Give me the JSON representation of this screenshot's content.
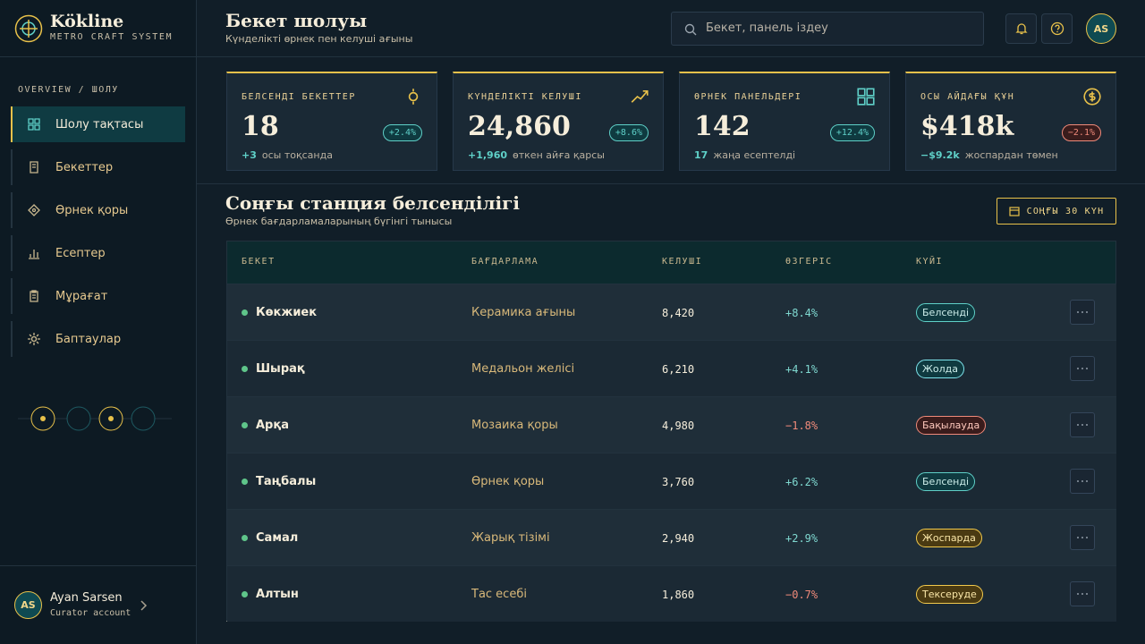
{
  "sidebar": {
    "brand": {
      "name": "Kökline",
      "tagline": "METRO CRAFT SYSTEM"
    },
    "breadcrumb": "OVERVIEW / ШОЛУ",
    "nav": [
      {
        "label": "Шолу тақтасы",
        "active": true
      },
      {
        "label": "Бекеттер",
        "active": false
      },
      {
        "label": "Өрнек қоры",
        "active": false
      },
      {
        "label": "Есептер",
        "active": false
      },
      {
        "label": "Мұрағат",
        "active": false
      },
      {
        "label": "Баптаулар",
        "active": false
      }
    ],
    "user": {
      "initials": "AS",
      "name": "Ayan Sarsen",
      "role": "Curator account"
    }
  },
  "header": {
    "title": "Бекет шолуы",
    "subtitle": "Күнделікті өрнек пен келуші ағыны",
    "search_placeholder": "Бекет, панель іздеу",
    "avatar": "AS"
  },
  "kpis": [
    {
      "label": "БЕЛСЕНДІ БЕКЕТТЕР",
      "value": "18",
      "badge": "+2.4%",
      "badge_color": "#5fd0c8",
      "delta": "+3",
      "note": "осы тоқсанда"
    },
    {
      "label": "КҮНДЕЛІКТІ КЕЛУШІ",
      "value": "24,860",
      "badge": "+8.6%",
      "badge_color": "#5fd0c8",
      "delta": "+1,960",
      "note": "өткен айға қарсы"
    },
    {
      "label": "ӨРНЕК ПАНЕЛЬДЕРІ",
      "value": "142",
      "badge": "+12.4%",
      "badge_color": "#5fd0c8",
      "delta": "17",
      "note": "жаңа есептелді"
    },
    {
      "label": "ОСЫ АЙДАҒЫ ҚҰН",
      "value": "$418k",
      "badge": "−2.1%",
      "badge_color": "#f08a7a",
      "delta": "−$9.2k",
      "note": "жоспардан төмен"
    }
  ],
  "activity": {
    "title": "Соңғы станция белсенділігі",
    "subtitle": "Өрнек бағдарламаларының бүгінгі тынысы",
    "range_button": "СОҢҒЫ 30 КҮН",
    "columns": [
      "БЕКЕТ",
      "БАҒДАРЛАМА",
      "КЕЛУШІ",
      "ӨЗГЕРІС",
      "КҮЙІ"
    ],
    "rows": [
      {
        "station": "Көкжиек",
        "program": "Керамика ағыны",
        "visitors": "8,420",
        "change": "+8.4%",
        "change_color": "#7fd8d0",
        "status": "Белсенді",
        "status_color": "#5fd0c8"
      },
      {
        "station": "Шырақ",
        "program": "Медальон желісі",
        "visitors": "6,210",
        "change": "+4.1%",
        "change_color": "#7fd8d0",
        "status": "Жолда",
        "status_color": "#7fe6ee"
      },
      {
        "station": "Арқа",
        "program": "Мозаика қоры",
        "visitors": "4,980",
        "change": "−1.8%",
        "change_color": "#f08a7a",
        "status": "Бақылауда",
        "status_color": "#f08a7a"
      },
      {
        "station": "Таңбалы",
        "program": "Өрнек қоры",
        "visitors": "3,760",
        "change": "+6.2%",
        "change_color": "#7fd8d0",
        "status": "Белсенді",
        "status_color": "#5fd0c8"
      },
      {
        "station": "Самал",
        "program": "Жарық тізімі",
        "visitors": "2,940",
        "change": "+2.9%",
        "change_color": "#7fd8d0",
        "status": "Жоспарда",
        "status_color": "#f2c94c"
      },
      {
        "station": "Алтын",
        "program": "Тас есебі",
        "visitors": "1,860",
        "change": "−0.7%",
        "change_color": "#f08a7a",
        "status": "Тексеруде",
        "status_color": "#f2c94c"
      }
    ]
  }
}
